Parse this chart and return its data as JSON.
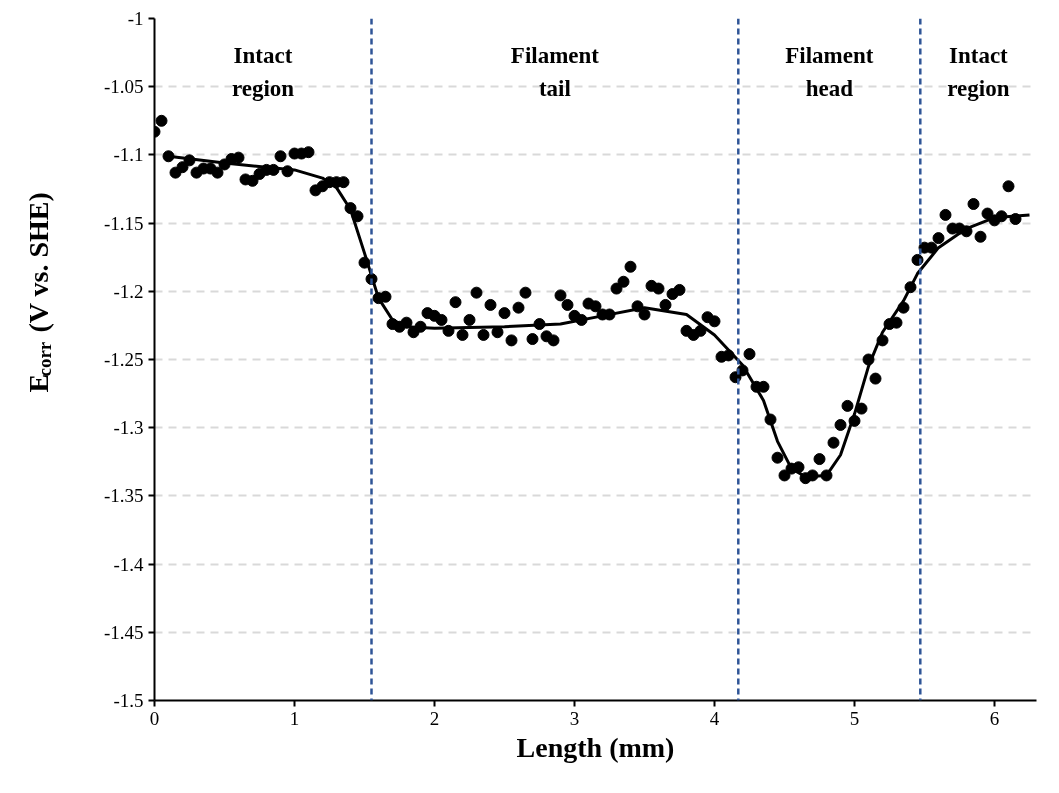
{
  "chart_data": {
    "type": "scatter",
    "xlabel": "Length (mm)",
    "ylabel": "E$_{corr}$ (V vs. SHE)",
    "xlim": [
      0,
      6.3
    ],
    "ylim": [
      -1.5,
      -1
    ],
    "xticks": [
      0,
      1,
      2,
      3,
      4,
      5,
      6
    ],
    "yticks": [
      -1.5,
      -1.45,
      -1.4,
      -1.35,
      -1.3,
      -1.25,
      -1.2,
      -1.15,
      -1.1,
      -1.05,
      -1
    ],
    "grid": "y",
    "series": [
      {
        "marker": "circle",
        "color": "#000000",
        "x": [
          0,
          0.05,
          0.1,
          0.15,
          0.2,
          0.25,
          0.3,
          0.35,
          0.4,
          0.45,
          0.5,
          0.55,
          0.6,
          0.65,
          0.7,
          0.75,
          0.8,
          0.85,
          0.9,
          0.95,
          1.0,
          1.05,
          1.1,
          1.15,
          1.2,
          1.25,
          1.3,
          1.35,
          1.4,
          1.45,
          1.5,
          1.55,
          1.6,
          1.65,
          1.7,
          1.75,
          1.8,
          1.85,
          1.9,
          1.95,
          2.0,
          2.05,
          2.1,
          2.15,
          2.2,
          2.25,
          2.3,
          2.35,
          2.4,
          2.45,
          2.5,
          2.55,
          2.6,
          2.65,
          2.7,
          2.75,
          2.8,
          2.85,
          2.9,
          2.95,
          3.0,
          3.05,
          3.1,
          3.15,
          3.2,
          3.25,
          3.3,
          3.35,
          3.4,
          3.45,
          3.5,
          3.55,
          3.6,
          3.65,
          3.7,
          3.75,
          3.8,
          3.85,
          3.9,
          3.95,
          4.0,
          4.05,
          4.1,
          4.15,
          4.2,
          4.25,
          4.3,
          4.35,
          4.4,
          4.45,
          4.5,
          4.55,
          4.6,
          4.65,
          4.7,
          4.75,
          4.8,
          4.85,
          4.9,
          4.95,
          5.0,
          5.05,
          5.1,
          5.15,
          5.2,
          5.25,
          5.3,
          5.35,
          5.4,
          5.45,
          5.5,
          5.55,
          5.6,
          5.65,
          5.7,
          5.75,
          5.8,
          5.85,
          5.9,
          5.95,
          6.0,
          6.05,
          6.1,
          6.15
        ],
        "values": [
          -1.083,
          -1.075,
          -1.101,
          -1.113,
          -1.109,
          -1.104,
          -1.113,
          -1.11,
          -1.11,
          -1.113,
          -1.107,
          -1.103,
          -1.102,
          -1.118,
          -1.119,
          -1.114,
          -1.111,
          -1.111,
          -1.101,
          -1.112,
          -1.099,
          -1.099,
          -1.098,
          -1.126,
          -1.123,
          -1.12,
          -1.12,
          -1.12,
          -1.139,
          -1.145,
          -1.179,
          -1.191,
          -1.205,
          -1.204,
          -1.224,
          -1.226,
          -1.223,
          -1.23,
          -1.226,
          -1.216,
          -1.218,
          -1.221,
          -1.229,
          -1.208,
          -1.232,
          -1.221,
          -1.201,
          -1.232,
          -1.21,
          -1.23,
          -1.216,
          -1.236,
          -1.212,
          -1.201,
          -1.235,
          -1.224,
          -1.233,
          -1.236,
          -1.203,
          -1.21,
          -1.218,
          -1.221,
          -1.209,
          -1.211,
          -1.217,
          -1.217,
          -1.198,
          -1.193,
          -1.182,
          -1.211,
          -1.217,
          -1.196,
          -1.198,
          -1.21,
          -1.202,
          -1.199,
          -1.229,
          -1.232,
          -1.229,
          -1.219,
          -1.222,
          -1.248,
          -1.247,
          -1.263,
          -1.258,
          -1.246,
          -1.27,
          -1.27,
          -1.294,
          -1.322,
          -1.335,
          -1.33,
          -1.329,
          -1.337,
          -1.335,
          -1.323,
          -1.335,
          -1.311,
          -1.298,
          -1.284,
          -1.295,
          -1.286,
          -1.25,
          -1.264,
          -1.236,
          -1.224,
          -1.223,
          -1.212,
          -1.197,
          -1.177,
          -1.168,
          -1.168,
          -1.161,
          -1.144,
          -1.154,
          -1.154,
          -1.156,
          -1.136,
          -1.16,
          -1.143,
          -1.148,
          -1.145,
          -1.123,
          -1.147
        ]
      },
      {
        "type": "line",
        "color": "#000000",
        "x": [
          0.1,
          0.5,
          1.0,
          1.2,
          1.3,
          1.4,
          1.5,
          1.6,
          1.7,
          1.8,
          2.0,
          2.5,
          2.9,
          3.2,
          3.5,
          3.8,
          4.0,
          4.2,
          4.35,
          4.45,
          4.55,
          4.65,
          4.8,
          4.9,
          5.0,
          5.1,
          5.2,
          5.35,
          5.45,
          5.6,
          5.8,
          6.0,
          6.25
        ],
        "values": [
          -1.101,
          -1.106,
          -1.111,
          -1.117,
          -1.124,
          -1.14,
          -1.172,
          -1.205,
          -1.221,
          -1.226,
          -1.227,
          -1.226,
          -1.224,
          -1.218,
          -1.212,
          -1.217,
          -1.232,
          -1.254,
          -1.28,
          -1.31,
          -1.33,
          -1.336,
          -1.335,
          -1.32,
          -1.29,
          -1.255,
          -1.23,
          -1.207,
          -1.187,
          -1.168,
          -1.154,
          -1.146,
          -1.144
        ]
      }
    ],
    "ref_lines": [
      {
        "axis": "x",
        "value": 1.55,
        "color": "#2f5597",
        "line_style": "dashed"
      },
      {
        "axis": "x",
        "value": 4.17,
        "color": "#2f5597",
        "line_style": "dashed"
      },
      {
        "axis": "x",
        "value": 5.47,
        "color": "#2f5597",
        "line_style": "dashed"
      }
    ],
    "annotations": [
      "Intact\nregion",
      "Filament\ntail",
      "Filament\nhead",
      "Intact\nregion"
    ]
  }
}
